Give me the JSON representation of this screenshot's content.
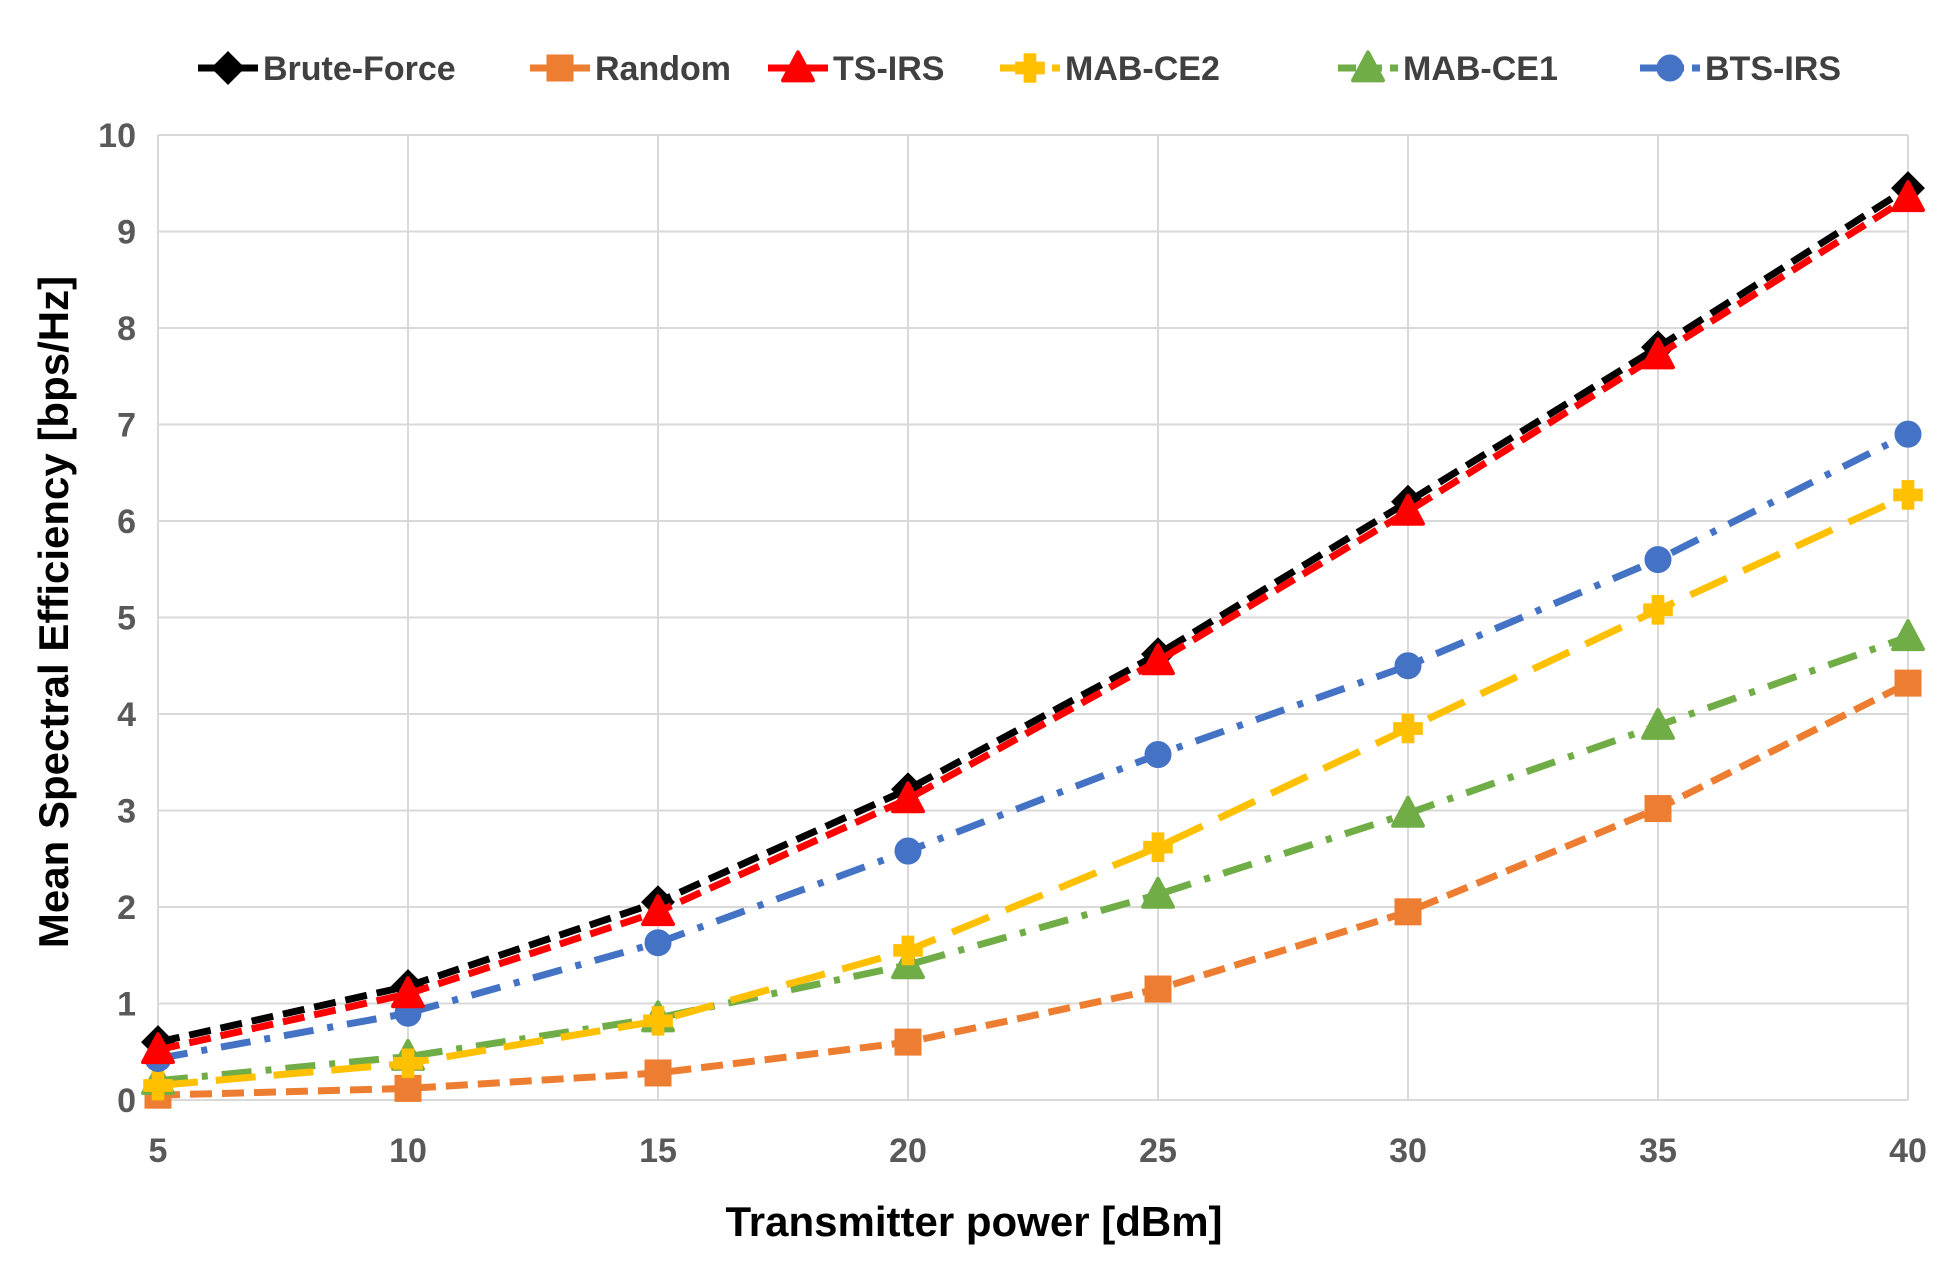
{
  "chart_data": {
    "type": "line",
    "title": "",
    "xlabel": "Transmitter power [dBm]",
    "ylabel": "Mean Spectral Efficiency [bps/Hz]",
    "x": [
      5,
      10,
      15,
      20,
      25,
      30,
      35,
      40
    ],
    "x_ticks": [
      "5",
      "10",
      "15",
      "20",
      "25",
      "30",
      "35",
      "40"
    ],
    "y_ticks": [
      "0",
      "1",
      "2",
      "3",
      "4",
      "5",
      "6",
      "7",
      "8",
      "9",
      "10"
    ],
    "xlim": [
      5,
      40
    ],
    "ylim": [
      0,
      10
    ],
    "grid": true,
    "legend_position": "top",
    "series": [
      {
        "name": "Brute-Force",
        "color": "#000000",
        "marker": "diamond",
        "dash": "dashed",
        "values": [
          0.6,
          1.18,
          2.05,
          3.22,
          4.62,
          6.2,
          7.8,
          9.45
        ]
      },
      {
        "name": "Random",
        "color": "#ED7D31",
        "marker": "square",
        "dash": "dashed",
        "values": [
          0.05,
          0.12,
          0.28,
          0.6,
          1.15,
          1.95,
          3.02,
          4.32
        ]
      },
      {
        "name": "TS-IRS",
        "color": "#FF0000",
        "marker": "triangle",
        "dash": "dashed",
        "values": [
          0.52,
          1.1,
          1.95,
          3.12,
          4.55,
          6.1,
          7.72,
          9.35
        ]
      },
      {
        "name": "MAB-CE2",
        "color": "#FFC000",
        "marker": "cross",
        "dash": "longdash",
        "values": [
          0.15,
          0.38,
          0.82,
          1.55,
          2.62,
          3.85,
          5.08,
          6.27
        ]
      },
      {
        "name": "MAB-CE1",
        "color": "#70AD47",
        "marker": "triangle",
        "dash": "dashdot",
        "values": [
          0.2,
          0.45,
          0.85,
          1.4,
          2.13,
          2.97,
          3.88,
          4.8
        ]
      },
      {
        "name": "BTS-IRS",
        "color": "#4472C4",
        "marker": "circle",
        "dash": "dashdot",
        "values": [
          0.43,
          0.9,
          1.63,
          2.58,
          3.58,
          4.5,
          5.6,
          6.9
        ]
      }
    ]
  }
}
